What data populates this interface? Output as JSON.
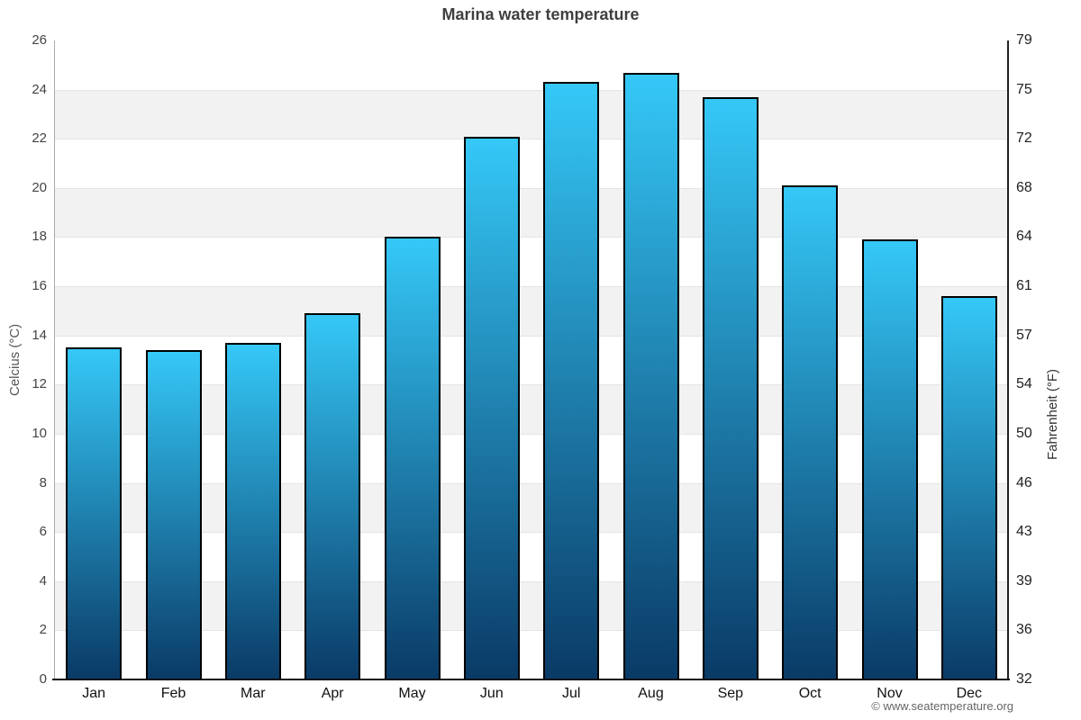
{
  "title": "Marina water temperature",
  "footer": {
    "credit": "© www.seatemperature.org"
  },
  "chart_data": {
    "type": "bar",
    "title": "Marina water temperature",
    "categories": [
      "Jan",
      "Feb",
      "Mar",
      "Apr",
      "May",
      "Jun",
      "Jul",
      "Aug",
      "Sep",
      "Oct",
      "Nov",
      "Dec"
    ],
    "values": [
      13.5,
      13.4,
      13.7,
      14.9,
      18.0,
      22.1,
      24.3,
      24.7,
      23.7,
      20.1,
      17.9,
      15.6
    ],
    "unit": "°C",
    "ylabel_left": "Celcius (°C)",
    "ylabel_right": "Fahrenheit (°F)",
    "ylim": [
      0,
      26
    ],
    "y_left_ticks": [
      0,
      2,
      4,
      6,
      8,
      10,
      12,
      14,
      16,
      18,
      20,
      22,
      24,
      26
    ],
    "y_right_ticks": [
      32,
      36,
      39,
      43,
      46,
      50,
      54,
      57,
      61,
      64,
      68,
      72,
      75,
      79
    ],
    "legend_position": "none",
    "grid": "alternating horizontal bands every 2°C with light gridlines",
    "colors": {
      "bar_gradient_top": "#35C8F7",
      "bar_gradient_bottom": "#0A3A66",
      "bar_border": "#000000",
      "band_gray": "#f2f2f2",
      "band_white": "#ffffff",
      "gridline": "#e5e5e5",
      "axis_left_line": "#aaaaaa",
      "axis_right_line": "#222222",
      "axis_bottom_line": "#111111",
      "title_color": "#3f3f3f",
      "tick_left_color": "#444444",
      "tick_right_color": "#222222",
      "month_label_color": "#111111",
      "footer_color": "#666666"
    }
  }
}
